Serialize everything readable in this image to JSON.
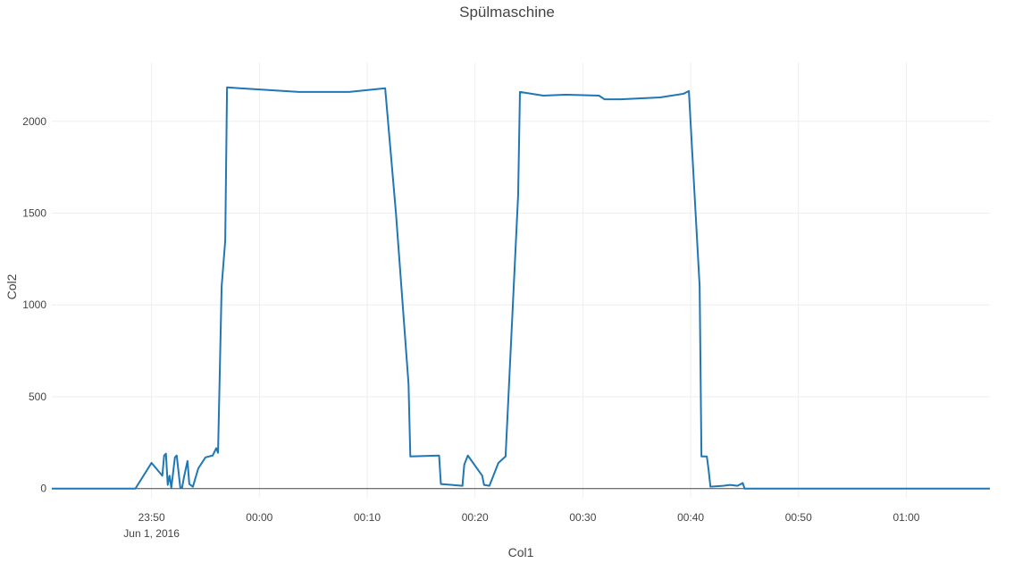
{
  "chart_data": {
    "type": "line",
    "title": "Spülmaschine",
    "xlabel": "Col1",
    "ylabel": "Col2",
    "x_axis_type": "time",
    "xlim": [
      "2016-06-01T23:40:45",
      "2016-06-02T01:07:45"
    ],
    "ylim": [
      -50,
      2320
    ],
    "grid": true,
    "x_ticks": [
      {
        "t": "2016-06-01T23:50:00",
        "label": "23:50",
        "sublabel": "Jun 1, 2016"
      },
      {
        "t": "2016-06-02T00:00:00",
        "label": "00:00"
      },
      {
        "t": "2016-06-02T00:10:00",
        "label": "00:10"
      },
      {
        "t": "2016-06-02T00:20:00",
        "label": "00:20"
      },
      {
        "t": "2016-06-02T00:30:00",
        "label": "00:30"
      },
      {
        "t": "2016-06-02T00:40:00",
        "label": "00:40"
      },
      {
        "t": "2016-06-02T00:50:00",
        "label": "00:50"
      },
      {
        "t": "2016-06-02T01:00:00",
        "label": "01:00"
      }
    ],
    "y_ticks": [
      {
        "v": 0,
        "label": "0"
      },
      {
        "v": 500,
        "label": "500"
      },
      {
        "v": 1000,
        "label": "1000"
      },
      {
        "v": 1500,
        "label": "1500"
      },
      {
        "v": 2000,
        "label": "2000"
      }
    ],
    "series": [
      {
        "color": "#1f77b4",
        "x": [
          "2016-06-01T23:40:45",
          "2016-06-01T23:48:30",
          "2016-06-01T23:50:00",
          "2016-06-01T23:51:00",
          "2016-06-01T23:51:10",
          "2016-06-01T23:51:20",
          "2016-06-01T23:51:30",
          "2016-06-01T23:51:40",
          "2016-06-01T23:51:50",
          "2016-06-01T23:52:10",
          "2016-06-01T23:52:20",
          "2016-06-01T23:52:40",
          "2016-06-01T23:52:50",
          "2016-06-01T23:53:00",
          "2016-06-01T23:53:20",
          "2016-06-01T23:53:30",
          "2016-06-01T23:53:50",
          "2016-06-01T23:54:20",
          "2016-06-01T23:55:00",
          "2016-06-01T23:55:40",
          "2016-06-01T23:56:00",
          "2016-06-01T23:56:10",
          "2016-06-01T23:56:30",
          "2016-06-01T23:56:50",
          "2016-06-01T23:57:00",
          "2016-06-01T23:58:10",
          "2016-06-02T00:03:40",
          "2016-06-02T00:08:20",
          "2016-06-02T00:11:40",
          "2016-06-02T00:12:40",
          "2016-06-02T00:13:50",
          "2016-06-02T00:14:00",
          "2016-06-02T00:16:40",
          "2016-06-02T00:16:50",
          "2016-06-02T00:18:50",
          "2016-06-02T00:19:00",
          "2016-06-02T00:19:20",
          "2016-06-02T00:20:40",
          "2016-06-02T00:20:50",
          "2016-06-02T00:21:20",
          "2016-06-02T00:22:10",
          "2016-06-02T00:22:50",
          "2016-06-02T00:24:00",
          "2016-06-02T00:24:10",
          "2016-06-02T00:26:20",
          "2016-06-02T00:28:20",
          "2016-06-02T00:31:30",
          "2016-06-02T00:32:00",
          "2016-06-02T00:33:30",
          "2016-06-02T00:37:10",
          "2016-06-02T00:39:20",
          "2016-06-02T00:39:50",
          "2016-06-02T00:40:50",
          "2016-06-02T00:41:00",
          "2016-06-02T00:41:30",
          "2016-06-02T00:41:40",
          "2016-06-02T00:41:50",
          "2016-06-02T00:43:00",
          "2016-06-02T00:43:40",
          "2016-06-02T00:44:20",
          "2016-06-02T00:44:30",
          "2016-06-02T00:44:50",
          "2016-06-02T00:45:00",
          "2016-06-02T00:45:10",
          "2016-06-02T00:46:00",
          "2016-06-02T01:07:45"
        ],
        "y": [
          0,
          0,
          140,
          70,
          180,
          190,
          20,
          70,
          5,
          170,
          180,
          5,
          5,
          60,
          150,
          25,
          10,
          110,
          170,
          180,
          220,
          195,
          1100,
          1350,
          2185,
          2180,
          2160,
          2160,
          2180,
          1500,
          570,
          175,
          180,
          25,
          15,
          130,
          180,
          70,
          20,
          15,
          140,
          175,
          1600,
          2160,
          2140,
          2145,
          2140,
          2120,
          2120,
          2130,
          2150,
          2165,
          1100,
          175,
          175,
          100,
          10,
          15,
          20,
          15,
          20,
          30,
          0,
          0,
          0,
          0
        ]
      }
    ]
  }
}
